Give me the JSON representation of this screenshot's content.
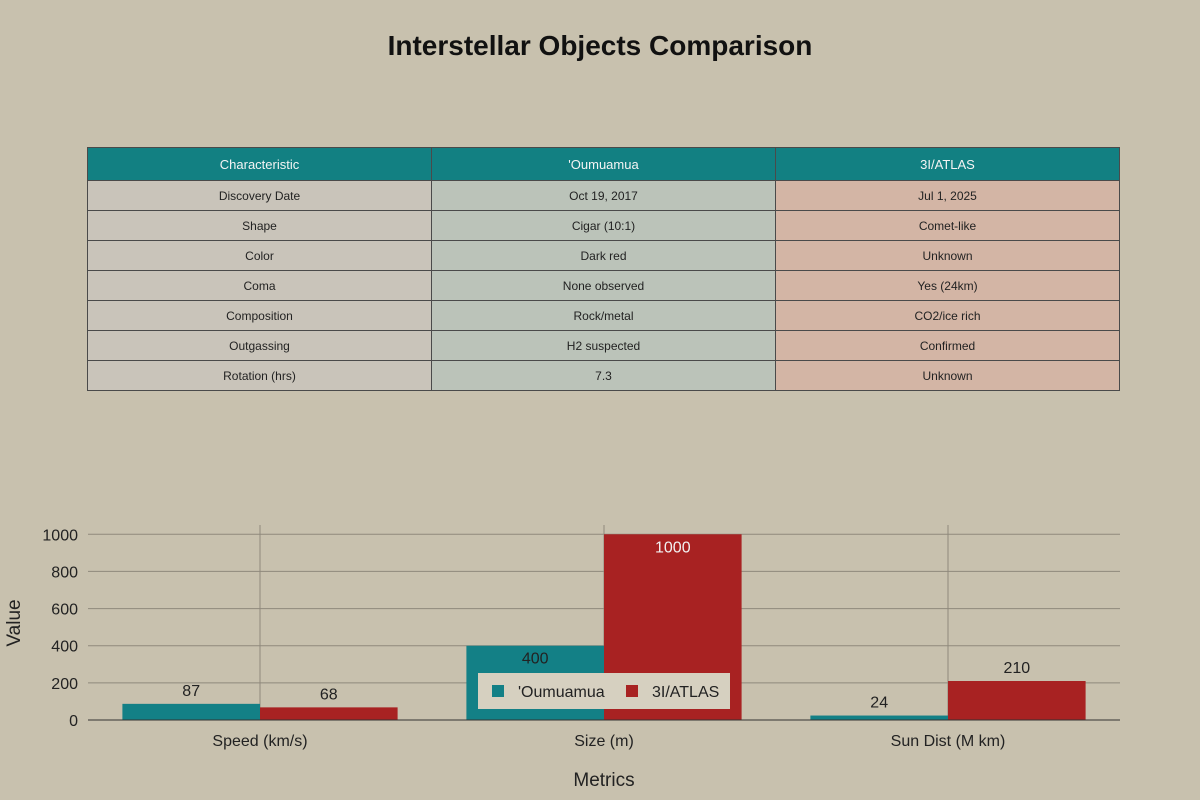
{
  "title": "Interstellar Objects Comparison",
  "table": {
    "headers": [
      "Characteristic",
      "'Oumuamua",
      "3I/ATLAS"
    ],
    "rows": [
      [
        "Discovery Date",
        "Oct 19, 2017",
        "Jul 1, 2025"
      ],
      [
        "Shape",
        "Cigar (10:1)",
        "Comet-like"
      ],
      [
        "Color",
        "Dark red",
        "Unknown"
      ],
      [
        "Coma",
        "None observed",
        "Yes (24km)"
      ],
      [
        "Composition",
        "Rock/metal",
        "CO2/ice rich"
      ],
      [
        "Outgassing",
        "H2 suspected",
        "Confirmed"
      ],
      [
        "Rotation (hrs)",
        "7.3",
        "Unknown"
      ]
    ]
  },
  "chart_data": {
    "type": "bar",
    "categories": [
      "Speed (km/s)",
      "Size (m)",
      "Sun Dist (M km)"
    ],
    "series": [
      {
        "name": "'Oumuamua",
        "values": [
          87,
          400,
          24
        ],
        "color": "#138086"
      },
      {
        "name": "3I/ATLAS",
        "values": [
          68,
          1000,
          210
        ],
        "color": "#a82222"
      }
    ],
    "xlabel": "Metrics",
    "ylabel": "Value",
    "ylim": [
      0,
      1050
    ],
    "yticks": [
      0,
      200,
      400,
      600,
      800,
      1000
    ],
    "grid": true,
    "legend": "inside-bottom-center"
  }
}
